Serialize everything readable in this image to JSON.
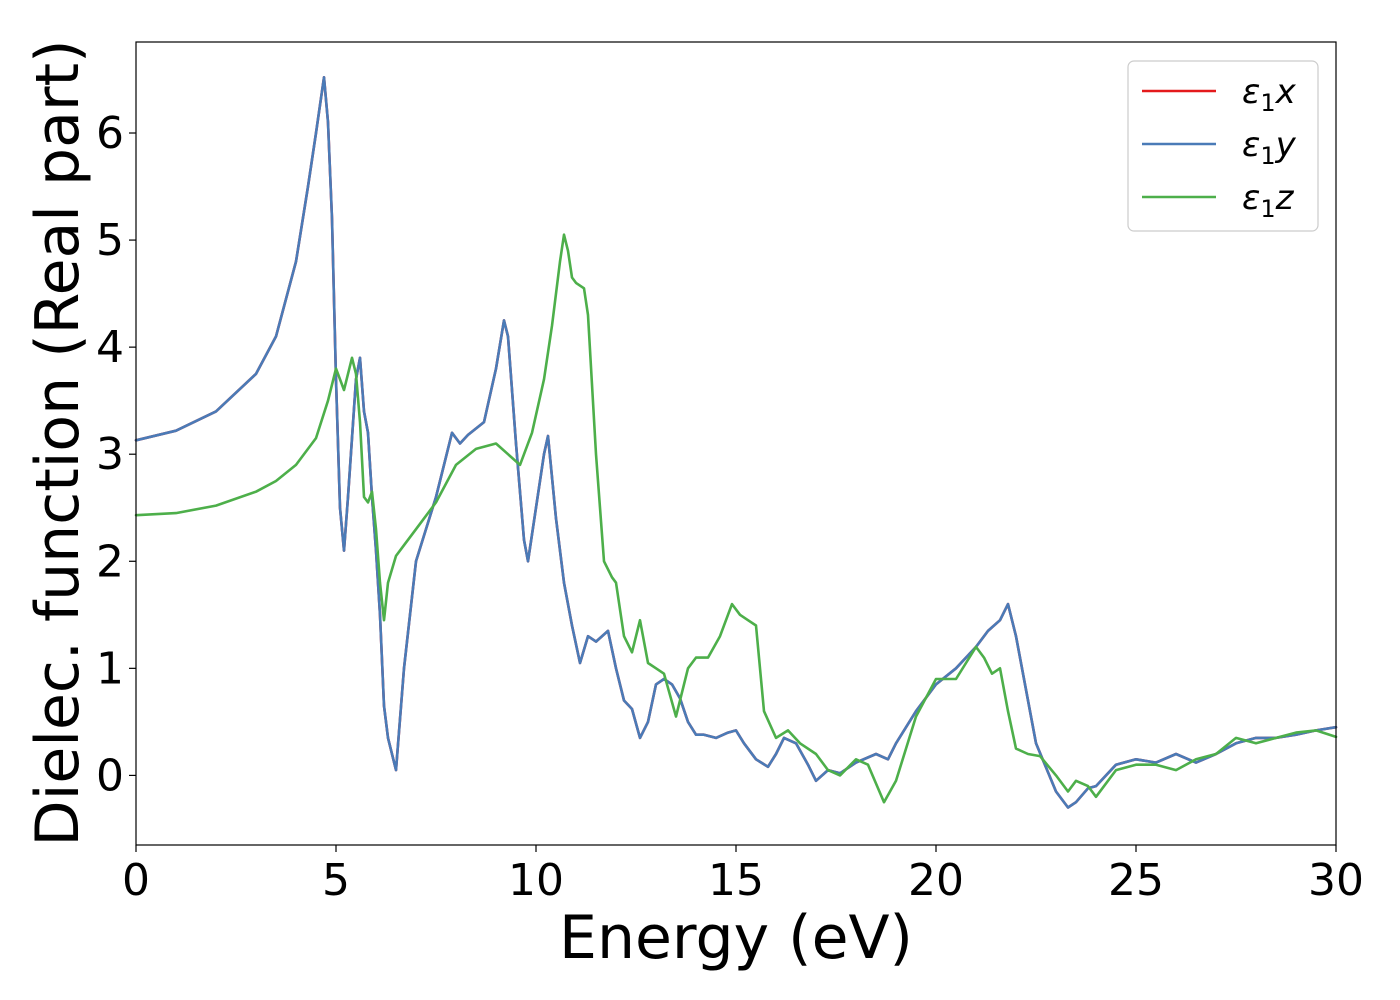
{
  "chart_data": {
    "type": "line",
    "xlabel": "Energy (eV)",
    "ylabel": "Dielec. function (Real part)",
    "xlim": [
      0,
      30
    ],
    "ylim": [
      -0.65,
      6.85
    ],
    "xticks": [
      0,
      5,
      10,
      15,
      20,
      25,
      30
    ],
    "yticks": [
      0,
      1,
      2,
      3,
      4,
      5,
      6
    ],
    "grid": false,
    "legend_position": "top-right",
    "series": [
      {
        "name": "ε₁x",
        "legend_base": "ε",
        "legend_sub": "1",
        "legend_var": "x",
        "color": "#e41a1c",
        "x": [
          0,
          1,
          2,
          3,
          3.5,
          4,
          4.3,
          4.5,
          4.7,
          4.8,
          4.9,
          5.0,
          5.1,
          5.2,
          5.3,
          5.5,
          5.6,
          5.7,
          5.8,
          5.9,
          6.0,
          6.1,
          6.2,
          6.3,
          6.5,
          6.7,
          7.0,
          7.5,
          7.9,
          8.1,
          8.3,
          8.7,
          9.0,
          9.2,
          9.3,
          9.5,
          9.7,
          9.8,
          10.0,
          10.2,
          10.3,
          10.5,
          10.7,
          10.9,
          11.1,
          11.3,
          11.5,
          11.8,
          12.0,
          12.2,
          12.4,
          12.6,
          12.8,
          13.0,
          13.2,
          13.4,
          13.6,
          13.8,
          14.0,
          14.2,
          14.5,
          14.8,
          15.0,
          15.2,
          15.5,
          15.8,
          16.0,
          16.2,
          16.5,
          16.8,
          17.0,
          17.3,
          17.6,
          18.0,
          18.5,
          18.8,
          19.0,
          19.5,
          20.0,
          20.5,
          21.0,
          21.3,
          21.6,
          21.8,
          22.0,
          22.2,
          22.5,
          23.0,
          23.3,
          23.5,
          23.8,
          24.0,
          24.5,
          25.0,
          25.5,
          26.0,
          26.5,
          27.0,
          27.5,
          28.0,
          28.5,
          29.0,
          29.5,
          30.0
        ],
        "y": [
          3.13,
          3.22,
          3.4,
          3.75,
          4.1,
          4.8,
          5.5,
          6.0,
          6.52,
          6.1,
          5.2,
          3.7,
          2.5,
          2.1,
          2.6,
          3.7,
          3.9,
          3.4,
          3.2,
          2.6,
          2.1,
          1.5,
          0.65,
          0.35,
          0.05,
          1.0,
          2.0,
          2.6,
          3.2,
          3.1,
          3.18,
          3.3,
          3.8,
          4.25,
          4.1,
          3.1,
          2.2,
          2.0,
          2.5,
          3.0,
          3.17,
          2.4,
          1.8,
          1.4,
          1.05,
          1.3,
          1.25,
          1.35,
          1.0,
          0.7,
          0.62,
          0.35,
          0.5,
          0.85,
          0.9,
          0.85,
          0.72,
          0.5,
          0.38,
          0.38,
          0.35,
          0.4,
          0.42,
          0.3,
          0.15,
          0.08,
          0.2,
          0.35,
          0.3,
          0.1,
          -0.05,
          0.05,
          0.02,
          0.12,
          0.2,
          0.15,
          0.3,
          0.6,
          0.85,
          1.0,
          1.2,
          1.35,
          1.45,
          1.6,
          1.3,
          0.9,
          0.3,
          -0.15,
          -0.3,
          -0.25,
          -0.12,
          -0.1,
          0.1,
          0.15,
          0.12,
          0.2,
          0.12,
          0.2,
          0.3,
          0.35,
          0.35,
          0.38,
          0.42,
          0.45
        ]
      },
      {
        "name": "ε₁y",
        "legend_base": "ε",
        "legend_sub": "1",
        "legend_var": "y",
        "color": "#4a7bb7",
        "x": [
          0,
          1,
          2,
          3,
          3.5,
          4,
          4.3,
          4.5,
          4.7,
          4.8,
          4.9,
          5.0,
          5.1,
          5.2,
          5.3,
          5.5,
          5.6,
          5.7,
          5.8,
          5.9,
          6.0,
          6.1,
          6.2,
          6.3,
          6.5,
          6.7,
          7.0,
          7.5,
          7.9,
          8.1,
          8.3,
          8.7,
          9.0,
          9.2,
          9.3,
          9.5,
          9.7,
          9.8,
          10.0,
          10.2,
          10.3,
          10.5,
          10.7,
          10.9,
          11.1,
          11.3,
          11.5,
          11.8,
          12.0,
          12.2,
          12.4,
          12.6,
          12.8,
          13.0,
          13.2,
          13.4,
          13.6,
          13.8,
          14.0,
          14.2,
          14.5,
          14.8,
          15.0,
          15.2,
          15.5,
          15.8,
          16.0,
          16.2,
          16.5,
          16.8,
          17.0,
          17.3,
          17.6,
          18.0,
          18.5,
          18.8,
          19.0,
          19.5,
          20.0,
          20.5,
          21.0,
          21.3,
          21.6,
          21.8,
          22.0,
          22.2,
          22.5,
          23.0,
          23.3,
          23.5,
          23.8,
          24.0,
          24.5,
          25.0,
          25.5,
          26.0,
          26.5,
          27.0,
          27.5,
          28.0,
          28.5,
          29.0,
          29.5,
          30.0
        ],
        "y": [
          3.13,
          3.22,
          3.4,
          3.75,
          4.1,
          4.8,
          5.5,
          6.0,
          6.52,
          6.1,
          5.2,
          3.7,
          2.5,
          2.1,
          2.6,
          3.7,
          3.9,
          3.4,
          3.2,
          2.6,
          2.1,
          1.5,
          0.65,
          0.35,
          0.05,
          1.0,
          2.0,
          2.6,
          3.2,
          3.1,
          3.18,
          3.3,
          3.8,
          4.25,
          4.1,
          3.1,
          2.2,
          2.0,
          2.5,
          3.0,
          3.17,
          2.4,
          1.8,
          1.4,
          1.05,
          1.3,
          1.25,
          1.35,
          1.0,
          0.7,
          0.62,
          0.35,
          0.5,
          0.85,
          0.9,
          0.85,
          0.72,
          0.5,
          0.38,
          0.38,
          0.35,
          0.4,
          0.42,
          0.3,
          0.15,
          0.08,
          0.2,
          0.35,
          0.3,
          0.1,
          -0.05,
          0.05,
          0.02,
          0.12,
          0.2,
          0.15,
          0.3,
          0.6,
          0.85,
          1.0,
          1.2,
          1.35,
          1.45,
          1.6,
          1.3,
          0.9,
          0.3,
          -0.15,
          -0.3,
          -0.25,
          -0.12,
          -0.1,
          0.1,
          0.15,
          0.12,
          0.2,
          0.12,
          0.2,
          0.3,
          0.35,
          0.35,
          0.38,
          0.42,
          0.45
        ]
      },
      {
        "name": "ε₁z",
        "legend_base": "ε",
        "legend_sub": "1",
        "legend_var": "z",
        "color": "#4daf4a",
        "x": [
          0,
          1,
          2,
          3,
          3.5,
          4,
          4.5,
          4.8,
          5.0,
          5.2,
          5.4,
          5.5,
          5.6,
          5.7,
          5.8,
          5.9,
          6.0,
          6.1,
          6.2,
          6.3,
          6.5,
          6.7,
          7.0,
          7.5,
          8.0,
          8.5,
          9.0,
          9.3,
          9.6,
          9.9,
          10.2,
          10.4,
          10.6,
          10.7,
          10.8,
          10.9,
          11.0,
          11.2,
          11.3,
          11.5,
          11.7,
          11.9,
          12.0,
          12.2,
          12.4,
          12.6,
          12.8,
          13.0,
          13.2,
          13.5,
          13.8,
          14.0,
          14.3,
          14.6,
          14.9,
          15.1,
          15.3,
          15.5,
          15.7,
          16.0,
          16.3,
          16.6,
          17.0,
          17.3,
          17.6,
          18.0,
          18.3,
          18.7,
          19.0,
          19.5,
          20.0,
          20.5,
          21.0,
          21.2,
          21.4,
          21.6,
          21.8,
          22.0,
          22.3,
          22.6,
          23.0,
          23.3,
          23.5,
          23.8,
          24.0,
          24.5,
          25.0,
          25.5,
          26.0,
          26.5,
          27.0,
          27.5,
          28.0,
          28.5,
          29.0,
          29.5,
          30.0
        ],
        "y": [
          2.43,
          2.45,
          2.52,
          2.65,
          2.75,
          2.9,
          3.15,
          3.5,
          3.8,
          3.6,
          3.9,
          3.75,
          3.3,
          2.6,
          2.55,
          2.65,
          2.3,
          1.8,
          1.45,
          1.8,
          2.05,
          2.15,
          2.3,
          2.55,
          2.9,
          3.05,
          3.1,
          3.0,
          2.9,
          3.2,
          3.7,
          4.2,
          4.8,
          5.05,
          4.9,
          4.65,
          4.6,
          4.55,
          4.3,
          3.0,
          2.0,
          1.85,
          1.8,
          1.3,
          1.15,
          1.45,
          1.05,
          1.0,
          0.95,
          0.55,
          1.0,
          1.1,
          1.1,
          1.3,
          1.6,
          1.5,
          1.45,
          1.4,
          0.6,
          0.35,
          0.42,
          0.3,
          0.2,
          0.05,
          0.0,
          0.15,
          0.1,
          -0.25,
          -0.05,
          0.55,
          0.9,
          0.9,
          1.2,
          1.1,
          0.95,
          1.0,
          0.6,
          0.25,
          0.2,
          0.18,
          0.0,
          -0.15,
          -0.05,
          -0.1,
          -0.2,
          0.05,
          0.1,
          0.1,
          0.05,
          0.15,
          0.2,
          0.35,
          0.3,
          0.35,
          0.4,
          0.42,
          0.36
        ]
      }
    ]
  }
}
